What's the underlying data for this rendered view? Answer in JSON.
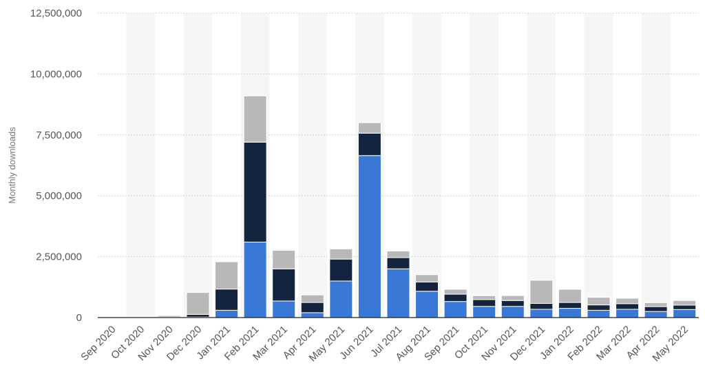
{
  "chart_data": {
    "type": "bar",
    "stacked": true,
    "ylabel": "Monthly downloads",
    "xlabel": "",
    "ylim": [
      0,
      12500000
    ],
    "yticks": [
      0,
      2500000,
      5000000,
      7500000,
      10000000,
      12500000
    ],
    "ytick_labels": [
      "0",
      "2,500,000",
      "5,000,000",
      "7,500,000",
      "10,000,000",
      "12,500,000"
    ],
    "grid": "horizontal dotted",
    "categories": [
      "Sep 2020",
      "Oct 2020",
      "Nov 2020",
      "Dec 2020",
      "Jan 2021",
      "Feb 2021",
      "Mar 2021",
      "Apr 2021",
      "May 2021",
      "Jun 2021",
      "Jul 2021",
      "Aug 2021",
      "Sep 2021",
      "Oct 2021",
      "Nov 2021",
      "Dec 2021",
      "Jan 2022",
      "Feb 2022",
      "Mar 2022",
      "Apr 2022",
      "May 2022"
    ],
    "series": [
      {
        "color": "#3a78d8",
        "values": [
          0,
          0,
          0,
          20000,
          300000,
          3100000,
          680000,
          200000,
          1500000,
          6650000,
          2000000,
          1080000,
          660000,
          460000,
          460000,
          340000,
          380000,
          300000,
          340000,
          250000,
          330000
        ]
      },
      {
        "color": "#14243f",
        "values": [
          0,
          10000,
          20000,
          110000,
          870000,
          4100000,
          1320000,
          420000,
          900000,
          920000,
          460000,
          380000,
          300000,
          280000,
          240000,
          240000,
          240000,
          220000,
          230000,
          200000,
          180000
        ]
      },
      {
        "color": "#b8b8b8",
        "values": [
          0,
          10000,
          60000,
          900000,
          1120000,
          1900000,
          760000,
          310000,
          420000,
          430000,
          270000,
          300000,
          200000,
          160000,
          200000,
          950000,
          540000,
          310000,
          220000,
          160000,
          190000
        ]
      }
    ]
  }
}
